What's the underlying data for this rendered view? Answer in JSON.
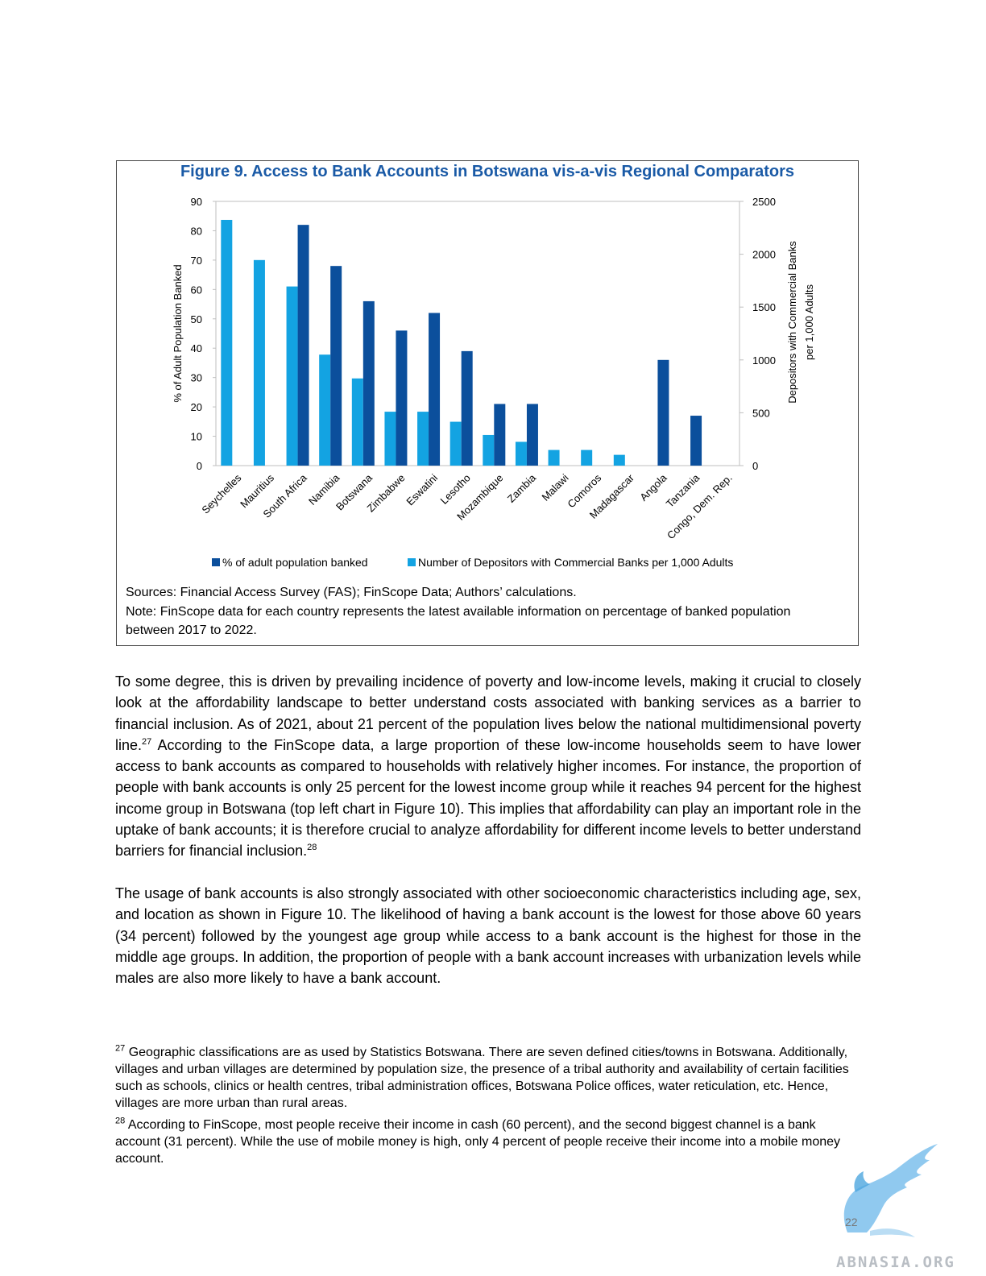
{
  "figure": {
    "title": "Figure 9. Access to Bank Accounts in Botswana vis-a-vis Regional Comparators",
    "sources": "Sources: Financial Access Survey (FAS); FinScope Data; Authors’ calculations.",
    "note": "Note: FinScope data for each country represents the latest available information on percentage of banked population between 2017 to 2022."
  },
  "chart_data": {
    "type": "bar",
    "title": "Figure 9. Access to Bank Accounts in Botswana vis-a-vis Regional Comparators",
    "categories": [
      "Seychelles",
      "Mauritius",
      "South Africa",
      "Namibia",
      "Botswana",
      "Zimbabwe",
      "Eswatini",
      "Lesotho",
      "Mozambique",
      "Zambia",
      "Malawi",
      "Comoros",
      "Madagascar",
      "Angola",
      "Tanzania",
      "Congo, Dem. Rep."
    ],
    "ylabel": "% of Adult Population Banked",
    "ylim": [
      0,
      90
    ],
    "yticks": [
      "0",
      "10",
      "20",
      "30",
      "40",
      "50",
      "60",
      "70",
      "80",
      "90"
    ],
    "y2label_lines": [
      "Depositors with Commercial Banks",
      "per 1,000 Adults"
    ],
    "y2lim": [
      0,
      2500
    ],
    "y2ticks": [
      "0",
      "500",
      "1000",
      "1500",
      "2000",
      "2500"
    ],
    "grid": false,
    "legend_position": "bottom",
    "series": [
      {
        "name": "Number of Depositors with Commercial Banks per 1,000 Adults",
        "axis": "right",
        "color": "#13a3e2",
        "values": [
          2325,
          1945,
          1695,
          1050,
          825,
          510,
          510,
          415,
          290,
          225,
          148,
          148,
          102,
          null,
          null,
          null
        ]
      },
      {
        "name": "% of adult population banked",
        "axis": "left",
        "color": "#0b4f9c",
        "values": [
          null,
          null,
          82,
          68,
          56,
          46,
          52,
          39,
          21,
          21,
          null,
          null,
          null,
          36,
          17,
          null
        ]
      }
    ]
  },
  "paragraphs": [
    {
      "text": "To some degree, this is driven by prevailing incidence of poverty and low-income levels, making it crucial to closely look at the affordability landscape to better understand costs associated with banking services as a barrier to financial inclusion. As of 2021, about 21 percent of the population lives below the national multidimensional poverty line.",
      "ref": "27",
      "text2": " According to the FinScope data, a large proportion of these low-income households seem to have lower access to bank accounts as compared to households with relatively higher incomes. For instance, the proportion of people with bank accounts is only 25 percent for the lowest income group while it reaches 94 percent for the highest income group in Botswana (top left chart in Figure 10). This implies that affordability can play an important role in the uptake of bank accounts; it is therefore crucial to analyze affordability for different income levels to better understand barriers for financial inclusion.",
      "ref2": "28"
    },
    {
      "text": "The usage of bank accounts is also strongly associated with other socioeconomic characteristics including age, sex, and location as shown in Figure 10. The likelihood of having a bank account is the lowest for those above 60 years (34 percent) followed by the youngest age group while access to a bank account is the highest for those in the middle age groups. In addition, the proportion of people with a bank account increases with urbanization levels while males are also more likely to have a bank account."
    }
  ],
  "footnotes": [
    {
      "num": "27",
      "text": " Geographic classifications are as used by Statistics Botswana. There are seven defined cities/towns in Botswana. Additionally, villages and urban villages are determined by population size, the presence of a tribal authority and availability of certain facilities such as schools, clinics or health centres, tribal administration offices, Botswana Police offices, water reticulation, etc. Hence, villages are more urban than rural areas."
    },
    {
      "num": "28",
      "text": " According to FinScope, most people receive their income in cash (60 percent), and the second biggest channel is a bank account (31 percent). While the use of mobile money is high, only 4 percent of people receive their income into a mobile money account."
    }
  ],
  "page_number": "22",
  "watermark": {
    "text": "ABNASIA.ORG",
    "icon": "phoenix-logo-icon",
    "color": "#6fb8e8"
  }
}
